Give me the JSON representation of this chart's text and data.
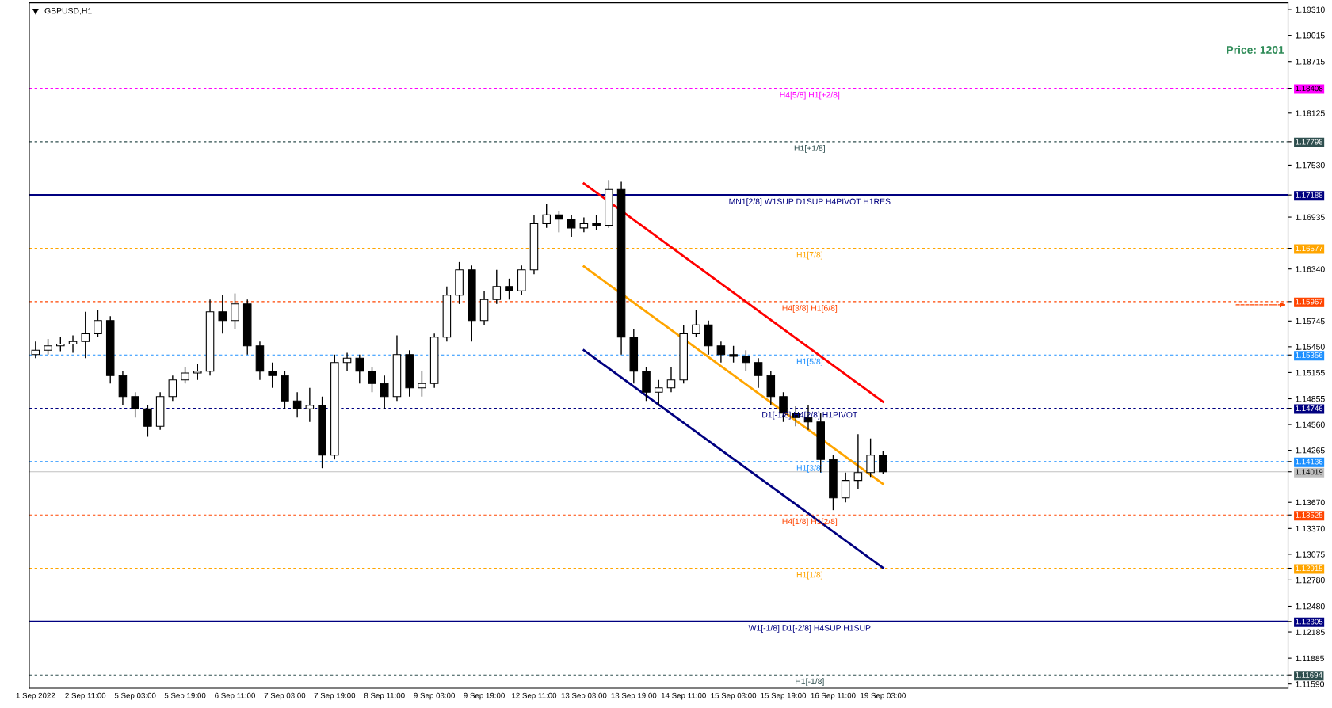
{
  "chart_data": {
    "type": "candlestick",
    "title": "GBPUSD,H1",
    "color": "#000000",
    "categories": [
      "1 Sep 2022",
      null,
      null,
      null,
      "2 Sep 11:00",
      null,
      null,
      null,
      "5 Sep 03:00",
      null,
      null,
      null,
      "5 Sep 19:00",
      null,
      null,
      null,
      "6 Sep 11:00",
      null,
      null,
      null,
      "7 Sep 03:00",
      null,
      null,
      null,
      "7 Sep 19:00",
      null,
      null,
      null,
      "8 Sep 11:00",
      null,
      null,
      null,
      "9 Sep 03:00",
      null,
      null,
      null,
      "9 Sep 19:00",
      null,
      null,
      null,
      "12 Sep 11:00",
      null,
      null,
      null,
      "13 Sep 03:00",
      null,
      null,
      null,
      "13 Sep 19:00",
      null,
      null,
      null,
      "14 Sep 11:00",
      null,
      null,
      null,
      "15 Sep 03:00",
      null,
      null,
      null,
      "15 Sep 19:00",
      null,
      null,
      null,
      "16 Sep 11:00",
      null,
      null,
      null,
      "19 Sep 03:00",
      null,
      null,
      null,
      null,
      null,
      null,
      null,
      null,
      null,
      null,
      null,
      null,
      null,
      null,
      null,
      null,
      null,
      null,
      null,
      null,
      null,
      null,
      null,
      null,
      null,
      null,
      null,
      null,
      null,
      null,
      null,
      null
    ],
    "ohlc": [
      [
        1.1536,
        1.1551,
        1.1532,
        1.1541
      ],
      [
        1.1541,
        1.1554,
        1.1536,
        1.1546
      ],
      [
        1.1546,
        1.1556,
        1.154,
        1.1548
      ],
      [
        1.1548,
        1.1558,
        1.1538,
        1.1551
      ],
      [
        1.1551,
        1.1585,
        1.1532,
        1.156
      ],
      [
        1.156,
        1.1587,
        1.1556,
        1.1575
      ],
      [
        1.1575,
        1.158,
        1.1503,
        1.1512
      ],
      [
        1.1512,
        1.1517,
        1.1478,
        1.1488
      ],
      [
        1.1488,
        1.1493,
        1.1464,
        1.1474
      ],
      [
        1.1474,
        1.1478,
        1.1442,
        1.1454
      ],
      [
        1.1454,
        1.1493,
        1.145,
        1.1488
      ],
      [
        1.1488,
        1.1512,
        1.1483,
        1.1507
      ],
      [
        1.1507,
        1.1522,
        1.1503,
        1.1515
      ],
      [
        1.1515,
        1.1525,
        1.1507,
        1.1517
      ],
      [
        1.1517,
        1.1599,
        1.1512,
        1.1585
      ],
      [
        1.1585,
        1.1604,
        1.156,
        1.1575
      ],
      [
        1.1575,
        1.1606,
        1.1565,
        1.1594
      ],
      [
        1.1594,
        1.1599,
        1.1536,
        1.1546
      ],
      [
        1.1546,
        1.1551,
        1.1507,
        1.1517
      ],
      [
        1.1517,
        1.1527,
        1.1498,
        1.1512
      ],
      [
        1.1512,
        1.1517,
        1.1474,
        1.1483
      ],
      [
        1.1483,
        1.1493,
        1.1464,
        1.1474
      ],
      [
        1.1474,
        1.1498,
        1.1459,
        1.1478
      ],
      [
        1.1478,
        1.1488,
        1.1406,
        1.1421
      ],
      [
        1.1421,
        1.1536,
        1.1416,
        1.1527
      ],
      [
        1.1527,
        1.1538,
        1.1517,
        1.1532
      ],
      [
        1.1532,
        1.1536,
        1.1503,
        1.1517
      ],
      [
        1.1517,
        1.1522,
        1.1493,
        1.1503
      ],
      [
        1.1503,
        1.1512,
        1.1474,
        1.1488
      ],
      [
        1.1488,
        1.1558,
        1.1483,
        1.1536
      ],
      [
        1.1536,
        1.1541,
        1.1488,
        1.1498
      ],
      [
        1.1498,
        1.1517,
        1.1488,
        1.1503
      ],
      [
        1.1503,
        1.156,
        1.1498,
        1.1556
      ],
      [
        1.1556,
        1.1614,
        1.1551,
        1.1604
      ],
      [
        1.1604,
        1.1642,
        1.1594,
        1.1633
      ],
      [
        1.1633,
        1.1638,
        1.1551,
        1.1575
      ],
      [
        1.1575,
        1.1609,
        1.157,
        1.1599
      ],
      [
        1.1599,
        1.1633,
        1.1594,
        1.1614
      ],
      [
        1.1614,
        1.1623,
        1.1599,
        1.1609
      ],
      [
        1.1609,
        1.1638,
        1.1604,
        1.1633
      ],
      [
        1.1633,
        1.1696,
        1.1628,
        1.1686
      ],
      [
        1.1686,
        1.1708,
        1.1681,
        1.1696
      ],
      [
        1.1696,
        1.17,
        1.1676,
        1.1691
      ],
      [
        1.1691,
        1.1696,
        1.1671,
        1.1681
      ],
      [
        1.1681,
        1.1693,
        1.1676,
        1.1686
      ],
      [
        1.1686,
        1.1696,
        1.1679,
        1.1684
      ],
      [
        1.1684,
        1.1736,
        1.1681,
        1.1725
      ],
      [
        1.1725,
        1.1734,
        1.1536,
        1.1556
      ],
      [
        1.1556,
        1.1565,
        1.1503,
        1.1517
      ],
      [
        1.1517,
        1.1522,
        1.1483,
        1.1493
      ],
      [
        1.1493,
        1.1507,
        1.1478,
        1.1498
      ],
      [
        1.1498,
        1.1522,
        1.1493,
        1.1507
      ],
      [
        1.1507,
        1.157,
        1.1503,
        1.156
      ],
      [
        1.156,
        1.1587,
        1.1556,
        1.157
      ],
      [
        1.157,
        1.1575,
        1.1536,
        1.1546
      ],
      [
        1.1546,
        1.1551,
        1.1527,
        1.1536
      ],
      [
        1.1536,
        1.1546,
        1.1527,
        1.1534
      ],
      [
        1.1534,
        1.1541,
        1.1517,
        1.1527
      ],
      [
        1.1527,
        1.1532,
        1.1498,
        1.1512
      ],
      [
        1.1512,
        1.1517,
        1.1478,
        1.1488
      ],
      [
        1.1488,
        1.1493,
        1.1459,
        1.1469
      ],
      [
        1.1469,
        1.1477,
        1.1454,
        1.1464
      ],
      [
        1.1464,
        1.1478,
        1.145,
        1.1459
      ],
      [
        1.1459,
        1.1469,
        1.1401,
        1.1416
      ],
      [
        1.1416,
        1.1421,
        1.1358,
        1.1372
      ],
      [
        1.1372,
        1.1401,
        1.1367,
        1.1392
      ],
      [
        1.1392,
        1.1445,
        1.1382,
        1.1401
      ],
      [
        1.1401,
        1.144,
        1.1396,
        1.1421
      ],
      [
        1.1421,
        1.1426,
        1.1399,
        1.1402
      ],
      null,
      null,
      null,
      null,
      null,
      null,
      null,
      null,
      null,
      null,
      null,
      null,
      null,
      null,
      null,
      null,
      null,
      null,
      null,
      null,
      null,
      null,
      null,
      null,
      null,
      null,
      null,
      null,
      null,
      null,
      null,
      null
    ],
    "series": [
      {
        "type": "line",
        "color": "#ff0000",
        "values": [
          null,
          null,
          null,
          null,
          null,
          null,
          null,
          null,
          null,
          null,
          null,
          null,
          null,
          null,
          null,
          null,
          null,
          null,
          null,
          null,
          null,
          null,
          null,
          null,
          null,
          null,
          null,
          null,
          null,
          null,
          null,
          null,
          null,
          null,
          null,
          null,
          null,
          null,
          null,
          null,
          null,
          null,
          null,
          null,
          1.1732,
          null,
          null,
          null,
          null,
          null,
          null,
          null,
          null,
          null,
          null,
          null,
          null,
          null,
          null,
          null,
          null,
          null,
          null,
          null,
          null,
          null,
          null,
          null,
          1.1482,
          null,
          null,
          null,
          null,
          null,
          null,
          null,
          null,
          null,
          null,
          null,
          null,
          null,
          null,
          null,
          null,
          null,
          null,
          null,
          null,
          null,
          null,
          null,
          null,
          null,
          null,
          null,
          null,
          null,
          null,
          null,
          null
        ]
      },
      {
        "type": "line",
        "color": "#ffa500",
        "values": [
          null,
          null,
          null,
          null,
          null,
          null,
          null,
          null,
          null,
          null,
          null,
          null,
          null,
          null,
          null,
          null,
          null,
          null,
          null,
          null,
          null,
          null,
          null,
          null,
          null,
          null,
          null,
          null,
          null,
          null,
          null,
          null,
          null,
          null,
          null,
          null,
          null,
          null,
          null,
          null,
          null,
          null,
          null,
          null,
          1.1637,
          null,
          null,
          null,
          null,
          null,
          null,
          null,
          null,
          null,
          null,
          null,
          null,
          null,
          null,
          null,
          null,
          null,
          null,
          null,
          null,
          null,
          null,
          null,
          1.1388,
          null,
          null,
          null,
          null,
          null,
          null,
          null,
          null,
          null,
          null,
          null,
          null,
          null,
          null,
          null,
          null,
          null,
          null,
          null,
          null,
          null,
          null,
          null,
          null,
          null,
          null,
          null,
          null,
          null,
          null,
          null,
          null
        ]
      },
      {
        "type": "line",
        "color": "#000080",
        "values": [
          null,
          null,
          null,
          null,
          null,
          null,
          null,
          null,
          null,
          null,
          null,
          null,
          null,
          null,
          null,
          null,
          null,
          null,
          null,
          null,
          null,
          null,
          null,
          null,
          null,
          null,
          null,
          null,
          null,
          null,
          null,
          null,
          null,
          null,
          null,
          null,
          null,
          null,
          null,
          null,
          null,
          null,
          null,
          null,
          1.1541,
          null,
          null,
          null,
          null,
          null,
          null,
          null,
          null,
          null,
          null,
          null,
          null,
          null,
          null,
          null,
          null,
          null,
          null,
          null,
          null,
          null,
          null,
          null,
          1.1292,
          null,
          null,
          null,
          null,
          null,
          null,
          null,
          null,
          null,
          null,
          null,
          null,
          null,
          null,
          null,
          null,
          null,
          null,
          null,
          null,
          null,
          null,
          null,
          null,
          null,
          null,
          null,
          null,
          null,
          null,
          null,
          null
        ]
      }
    ],
    "ref_lines": [
      {
        "axis": "y",
        "value": 1.18408,
        "label": "H4[5/8] H1[+2/8]",
        "color": "#ff00ff",
        "line_style": "dashed"
      },
      {
        "axis": "y",
        "value": 1.17798,
        "label": "H1[+1/8]",
        "color": "#2f4f4f",
        "line_style": "dashed"
      },
      {
        "axis": "y",
        "value": 1.17188,
        "label": "MN1[2/8] W1SUP D1SUP H4PIVOT H1RES",
        "color": "#000080",
        "line_style": "solid"
      },
      {
        "axis": "y",
        "value": 1.16577,
        "label": "H1[7/8]",
        "color": "#ffa500",
        "line_style": "dashed"
      },
      {
        "axis": "y",
        "value": 1.15967,
        "label": "H4[3/8] H1[6/8]",
        "color": "#ff4500",
        "line_style": "dashed"
      },
      {
        "axis": "y",
        "value": 1.15356,
        "label": "H1[5/8]",
        "color": "#1e90ff",
        "line_style": "dashed"
      },
      {
        "axis": "y",
        "value": 1.14746,
        "label": "D1[-1/8] H4[2/8] H1PIVOT",
        "color": "#000080",
        "line_style": "dashed"
      },
      {
        "axis": "y",
        "value": 1.14136,
        "label": "H1[3/8]",
        "color": "#1e90ff",
        "line_style": "dashed"
      },
      {
        "axis": "y",
        "value": 1.14019,
        "label": null,
        "color": "#c0c0c0",
        "line_style": "solid"
      },
      {
        "axis": "y",
        "value": 1.13525,
        "label": "H4[1/8] H1[2/8]",
        "color": "#ff4500",
        "line_style": "dashed"
      },
      {
        "axis": "y",
        "value": 1.12915,
        "label": "H1[1/8]",
        "color": "#ffa500",
        "line_style": "dashed"
      },
      {
        "axis": "y",
        "value": 1.12305,
        "label": "W1[-1/8] D1[-2/8] H4SUP H1SUP",
        "color": "#000080",
        "line_style": "solid"
      },
      {
        "axis": "y",
        "value": 1.11694,
        "label": "H1[-1/8]",
        "color": "#2f4f4f",
        "line_style": "dashed"
      }
    ],
    "annotations": [
      "Price: 1201"
    ],
    "ylim": [
      1.11542,
      1.19387
    ],
    "yticks": [
      {
        "value": 1.1931,
        "label": "1.19310"
      },
      1.19015,
      1.18715,
      1.18125,
      {
        "value": 1.1753,
        "label": "1.17530"
      },
      1.16935,
      {
        "value": 1.1634,
        "label": "1.16340"
      },
      1.15745,
      {
        "value": 1.1545,
        "label": "1.15450"
      },
      1.15155,
      1.14855,
      {
        "value": 1.1456,
        "label": "1.14560"
      },
      1.14265,
      {
        "value": 1.1367,
        "label": "1.13670"
      },
      {
        "value": 1.1337,
        "label": "1.13370"
      },
      1.13075,
      {
        "value": 1.1278,
        "label": "1.12780"
      },
      {
        "value": 1.1248,
        "label": "1.12480"
      },
      1.12185,
      1.11885,
      {
        "value": 1.1159,
        "label": "1.11590"
      },
      1.18408,
      1.17798,
      1.17188,
      1.16577,
      1.15967,
      1.15356,
      1.14746,
      1.14136,
      1.14019,
      1.13525,
      1.12915,
      1.12305,
      1.11694
    ],
    "grid": false,
    "legend": false
  }
}
